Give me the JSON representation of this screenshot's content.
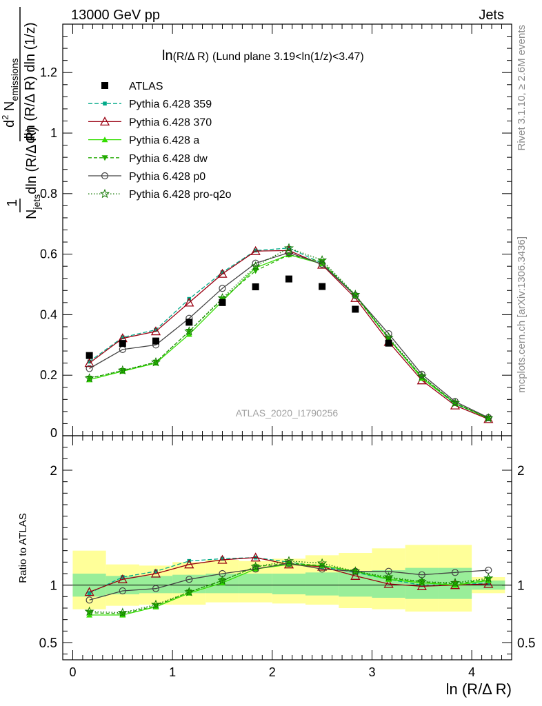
{
  "header": {
    "left": "13000 GeV pp",
    "right": "Jets"
  },
  "side_text": {
    "rivet": "Rivet 3.1.10, ≥ 2.6M events",
    "mcplots": "mcplots.cern.ch [arXiv:1306.3436]"
  },
  "watermark": "ATLAS_2020_I1790256",
  "chart_data": [
    {
      "type": "line",
      "panel": "main",
      "title": "ln(R/Δ R) (Lund plane 3.19<ln(1/z)<3.47)",
      "title_parts": {
        "func": "ln",
        "arg": "(R/Δ R)",
        "rest": "(Lund plane 3.19<ln(1/z)<3.47)"
      },
      "ylabel": "1/N_jets dln(R/Δ R) d²N_emissions / dln(1/z)",
      "ylabel_parts": {
        "num_one": "1",
        "den_n": "N",
        "den_sub": "jets",
        "den_rest": "dln (R/Δ R)",
        "num_d": "d",
        "num_sup": "2",
        "num_n": " N",
        "num_sub": "emissions",
        "den2": "dln (R/Δ R) dln (1/z)"
      },
      "xlim": [
        -0.1,
        4.4
      ],
      "ylim": [
        0,
        1.36
      ],
      "yticks": [
        0.2,
        0.4,
        0.6,
        0.8,
        1,
        1.2
      ],
      "ytick_labels": [
        "0.2",
        "0.4",
        "0.6",
        "0.8",
        "1",
        "1.2"
      ],
      "origin_label": "0",
      "x": [
        0.167,
        0.5,
        0.833,
        1.167,
        1.5,
        1.833,
        2.167,
        2.5,
        2.833,
        3.167,
        3.5,
        3.833,
        4.167
      ],
      "data": {
        "name": "ATLAS",
        "values": [
          0.265,
          0.305,
          0.313,
          0.375,
          0.44,
          0.492,
          0.518,
          0.493,
          0.418,
          0.306,
          null,
          null,
          null
        ]
      },
      "series": [
        {
          "name": "Pythia 6.428 359",
          "color": "#00aa88",
          "dash": "6,3",
          "marker": "square-small",
          "values": [
            0.245,
            0.325,
            0.35,
            0.452,
            0.54,
            0.612,
            0.62,
            0.57,
            0.465,
            0.32,
            0.19,
            0.105,
            0.058
          ]
        },
        {
          "name": "Pythia 6.428 370",
          "color": "#990011",
          "dash": "",
          "marker": "triangle-open",
          "values": [
            0.24,
            0.322,
            0.345,
            0.44,
            0.535,
            0.61,
            0.612,
            0.565,
            0.455,
            0.31,
            0.183,
            0.1,
            0.055
          ]
        },
        {
          "name": "Pythia 6.428 a",
          "color": "#33dd00",
          "dash": "",
          "marker": "triangle-filled",
          "values": [
            0.185,
            0.213,
            0.24,
            0.335,
            0.445,
            0.555,
            0.598,
            0.568,
            0.465,
            0.322,
            0.19,
            0.107,
            0.057
          ]
        },
        {
          "name": "Pythia 6.428 dw",
          "color": "#22aa00",
          "dash": "5,3",
          "marker": "triangle-down-filled",
          "values": [
            0.19,
            0.215,
            0.243,
            0.345,
            0.452,
            0.545,
            0.598,
            0.575,
            0.462,
            0.32,
            0.195,
            0.108,
            0.058
          ]
        },
        {
          "name": "Pythia 6.428 p0",
          "color": "#444444",
          "dash": "",
          "marker": "circle-open",
          "values": [
            0.222,
            0.285,
            0.3,
            0.388,
            0.487,
            0.57,
            0.605,
            0.567,
            0.463,
            0.337,
            0.203,
            0.113,
            0.06
          ]
        },
        {
          "name": "Pythia 6.428 pro-q2o",
          "color": "#117700",
          "dash": "1.5,2.5",
          "marker": "star",
          "values": [
            0.19,
            0.216,
            0.243,
            0.345,
            0.455,
            0.56,
            0.62,
            0.58,
            0.466,
            0.325,
            0.196,
            0.108,
            0.058
          ]
        }
      ]
    },
    {
      "type": "line",
      "panel": "ratio",
      "ylabel": "Ratio to ATLAS",
      "xlabel": "ln (R/Δ R)",
      "xlim": [
        -0.1,
        4.4
      ],
      "ylim": [
        0.35,
        2.3
      ],
      "yticks": [
        0.5,
        1,
        2
      ],
      "ytick_labels": [
        "0.5",
        "1",
        "2"
      ],
      "xticks": [
        0,
        1,
        2,
        3,
        4
      ],
      "xtick_labels": [
        "0",
        "1",
        "2",
        "3",
        "4"
      ],
      "bin_edges": [
        0,
        0.333,
        0.667,
        1.0,
        1.333,
        1.667,
        2.0,
        2.333,
        2.667,
        3.0,
        3.333,
        3.667,
        4.0,
        4.333
      ],
      "band_yellow": [
        [
          0.79,
          1.3
        ],
        [
          0.82,
          1.18
        ],
        [
          0.83,
          1.17
        ],
        [
          0.83,
          1.2
        ],
        [
          0.85,
          1.22
        ],
        [
          0.85,
          1.21
        ],
        [
          0.84,
          1.23
        ],
        [
          0.83,
          1.26
        ],
        [
          0.8,
          1.28
        ],
        [
          0.79,
          1.32
        ],
        [
          0.77,
          1.35
        ],
        [
          0.77,
          1.35
        ],
        [
          0.93,
          1.07
        ]
      ],
      "band_green": [
        [
          0.9,
          1.1
        ],
        [
          0.92,
          1.08
        ],
        [
          0.93,
          1.08
        ],
        [
          0.93,
          1.09
        ],
        [
          0.93,
          1.1
        ],
        [
          0.93,
          1.1
        ],
        [
          0.92,
          1.1
        ],
        [
          0.91,
          1.11
        ],
        [
          0.9,
          1.12
        ],
        [
          0.89,
          1.13
        ],
        [
          0.88,
          1.15
        ],
        [
          0.88,
          1.15
        ],
        [
          0.96,
          1.04
        ]
      ],
      "series": [
        {
          "name": "Pythia 6.428 359",
          "color": "#00aa88",
          "dash": "6,3",
          "marker": "square-small",
          "values": [
            0.93,
            1.07,
            1.12,
            1.21,
            1.23,
            1.24,
            1.2,
            1.16,
            1.11,
            1.05,
            1.0,
            1.0,
            1.02
          ]
        },
        {
          "name": "Pythia 6.428 370",
          "color": "#990011",
          "dash": "",
          "marker": "triangle-open",
          "values": [
            0.94,
            1.05,
            1.1,
            1.18,
            1.22,
            1.24,
            1.18,
            1.16,
            1.08,
            1.01,
            0.99,
            1.0,
            1.01
          ]
        },
        {
          "name": "Pythia 6.428 a",
          "color": "#33dd00",
          "dash": "",
          "marker": "triangle-filled",
          "values": [
            0.74,
            0.74,
            0.81,
            0.93,
            1.02,
            1.14,
            1.18,
            1.17,
            1.12,
            1.05,
            1.02,
            1.0,
            1.04
          ]
        },
        {
          "name": "Pythia 6.428 dw",
          "color": "#22aa00",
          "dash": "5,3",
          "marker": "triangle-down-filled",
          "values": [
            0.76,
            0.75,
            0.82,
            0.94,
            1.04,
            1.16,
            1.19,
            1.17,
            1.12,
            1.06,
            1.03,
            1.01,
            1.05
          ]
        },
        {
          "name": "Pythia 6.428 p0",
          "color": "#444444",
          "dash": "",
          "marker": "circle-open",
          "values": [
            0.87,
            0.95,
            0.97,
            1.05,
            1.1,
            1.14,
            1.19,
            1.14,
            1.12,
            1.12,
            1.09,
            1.11,
            1.13
          ]
        },
        {
          "name": "Pythia 6.428 pro-q2o",
          "color": "#117700",
          "dash": "1.5,2.5",
          "marker": "star",
          "values": [
            0.77,
            0.76,
            0.83,
            0.94,
            1.04,
            1.16,
            1.21,
            1.19,
            1.12,
            1.07,
            1.03,
            1.02,
            1.06
          ]
        }
      ]
    }
  ]
}
